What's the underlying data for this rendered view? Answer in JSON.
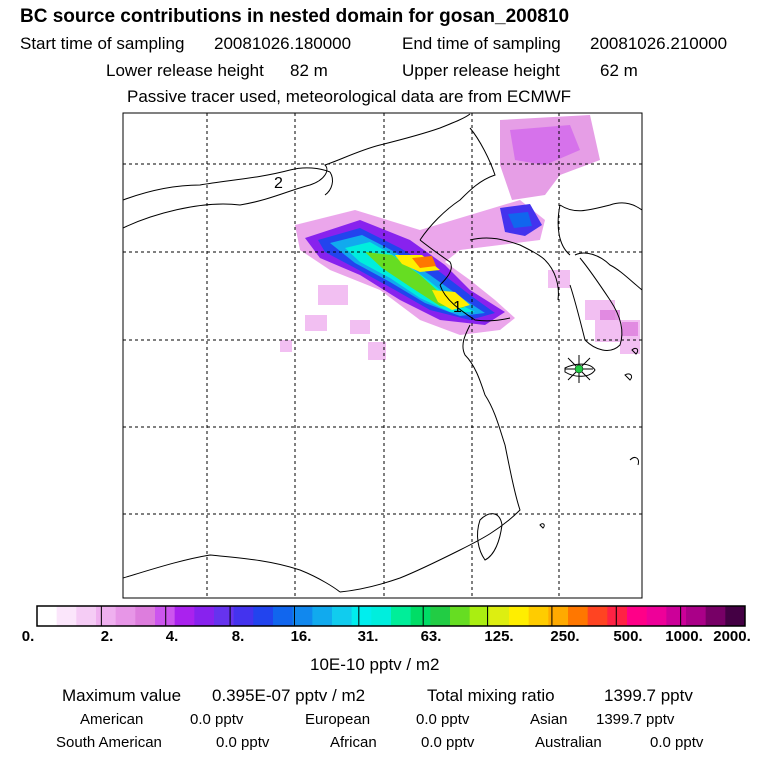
{
  "header": {
    "title": "BC  source contributions in nested domain for gosan_200810",
    "start_label": "Start time of sampling",
    "start_value": "20081026.180000",
    "end_label": "End time of sampling",
    "end_value": "20081026.210000",
    "lower_label": "Lower release height",
    "lower_value": "82 m",
    "upper_label": "Upper release height",
    "upper_value": "62 m",
    "note": "Passive tracer used, meteorological data are from ECMWF"
  },
  "map": {
    "label_2": "2",
    "label_1": "1",
    "receptor_icon": "asterisk-star-icon"
  },
  "colorbar": {
    "unit_label": "10E-10 pptv / m2",
    "tick_labels": [
      "0.",
      "2.",
      "4.",
      "8.",
      "16.",
      "31.",
      "63.",
      "125.",
      "250.",
      "500.",
      "1000.",
      "2000."
    ],
    "colors": [
      "#ffffff",
      "#fbe6fb",
      "#f5ccf5",
      "#efb0ef",
      "#e796e7",
      "#dd7ddd",
      "#cc55ee",
      "#aa22ee",
      "#8822ee",
      "#6633ee",
      "#4433ee",
      "#2244ee",
      "#1166ee",
      "#1188ee",
      "#11aaee",
      "#11ccee",
      "#00eeee",
      "#00eedd",
      "#00ee99",
      "#00dd66",
      "#22cc44",
      "#66dd22",
      "#aaee11",
      "#ddee11",
      "#ffee00",
      "#ffcc00",
      "#ffaa00",
      "#ff7700",
      "#ff4422",
      "#ff2244",
      "#ff0088",
      "#ee0099",
      "#cc0099",
      "#aa0088",
      "#770066",
      "#440044"
    ]
  },
  "stats": {
    "max_label": "Maximum value",
    "max_value": "0.395E-07 pptv / m2",
    "total_label": "Total mixing ratio",
    "total_value": "1399.7 pptv",
    "american_label": "American",
    "american_value": "0.0 pptv",
    "european_label": "European",
    "european_value": "0.0 pptv",
    "asian_label": "Asian",
    "asian_value": "1399.7 pptv",
    "south_american_label": "South American",
    "south_american_value": "0.0 pptv",
    "african_label": "African",
    "african_value": "0.0 pptv",
    "australian_label": "Australian",
    "australian_value": "0.0 pptv"
  }
}
